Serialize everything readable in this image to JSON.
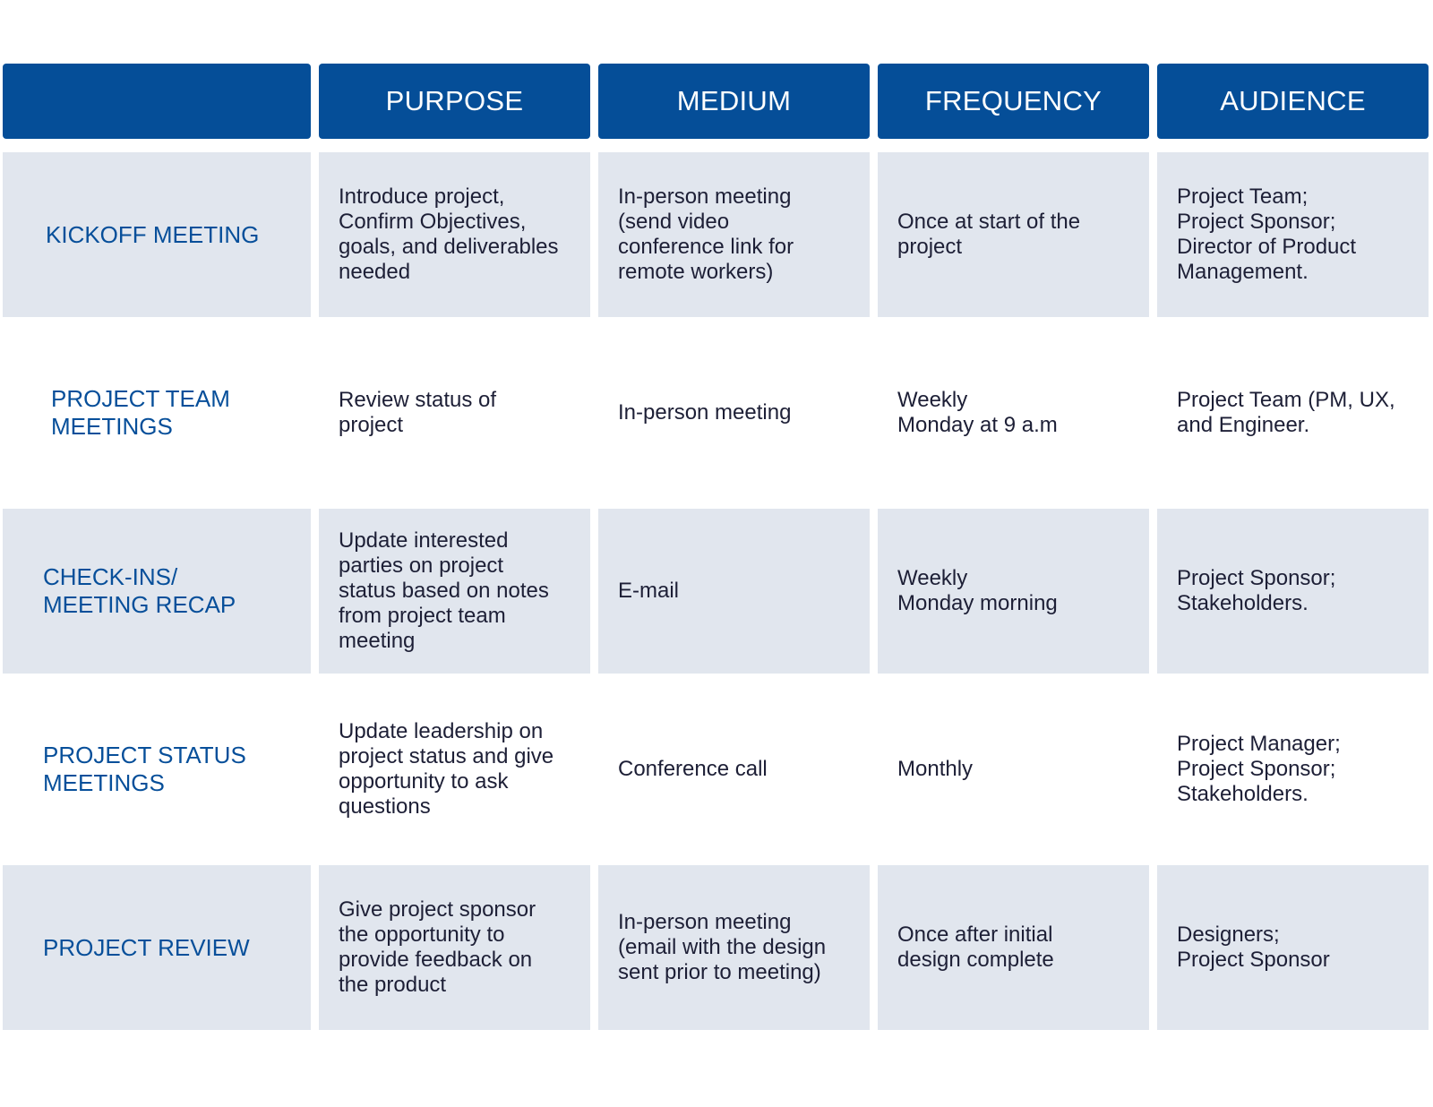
{
  "colors": {
    "header_bg": "#054e98",
    "header_text": "#ffffff",
    "row_shade": "#e1e6ee",
    "label_text": "#074f9a",
    "body_text": "#1d1f36"
  },
  "table": {
    "headers": [
      "",
      "PURPOSE",
      "MEDIUM",
      "FREQUENCY",
      "AUDIENCE"
    ],
    "rows": [
      {
        "label": "KICKOFF MEETING",
        "purpose": "Introduce project,\nConfirm Objectives,\ngoals, and deliverables\nneeded",
        "medium": "In-person meeting\n(send video\nconference link for\nremote workers)",
        "frequency": "Once at start of the\nproject",
        "audience": "Project Team;\nProject Sponsor;\nDirector of Product\nManagement."
      },
      {
        "label": "PROJECT TEAM\nMEETINGS",
        "purpose": "Review status of\nproject",
        "medium": "In-person meeting",
        "frequency": "Weekly\nMonday at 9 a.m",
        "audience": "Project Team (PM, UX,\nand Engineer."
      },
      {
        "label": "CHECK-INS/\nMEETING RECAP",
        "purpose": "Update interested\nparties on project\nstatus based on notes\nfrom project team\nmeeting",
        "medium": "E-mail",
        "frequency": "Weekly\nMonday morning",
        "audience": "Project Sponsor;\nStakeholders."
      },
      {
        "label": "PROJECT STATUS\nMEETINGS",
        "purpose": "Update leadership on\nproject status and give\nopportunity to ask\nquestions",
        "medium": "Conference call",
        "frequency": "Monthly",
        "audience": "Project Manager;\nProject Sponsor;\nStakeholders."
      },
      {
        "label": "PROJECT REVIEW",
        "purpose": "Give project sponsor\nthe opportunity to\nprovide feedback on\nthe product",
        "medium": "In-person meeting\n(email with the design\nsent prior to meeting)",
        "frequency": "Once after initial\ndesign complete",
        "audience": "Designers;\nProject Sponsor"
      }
    ]
  }
}
